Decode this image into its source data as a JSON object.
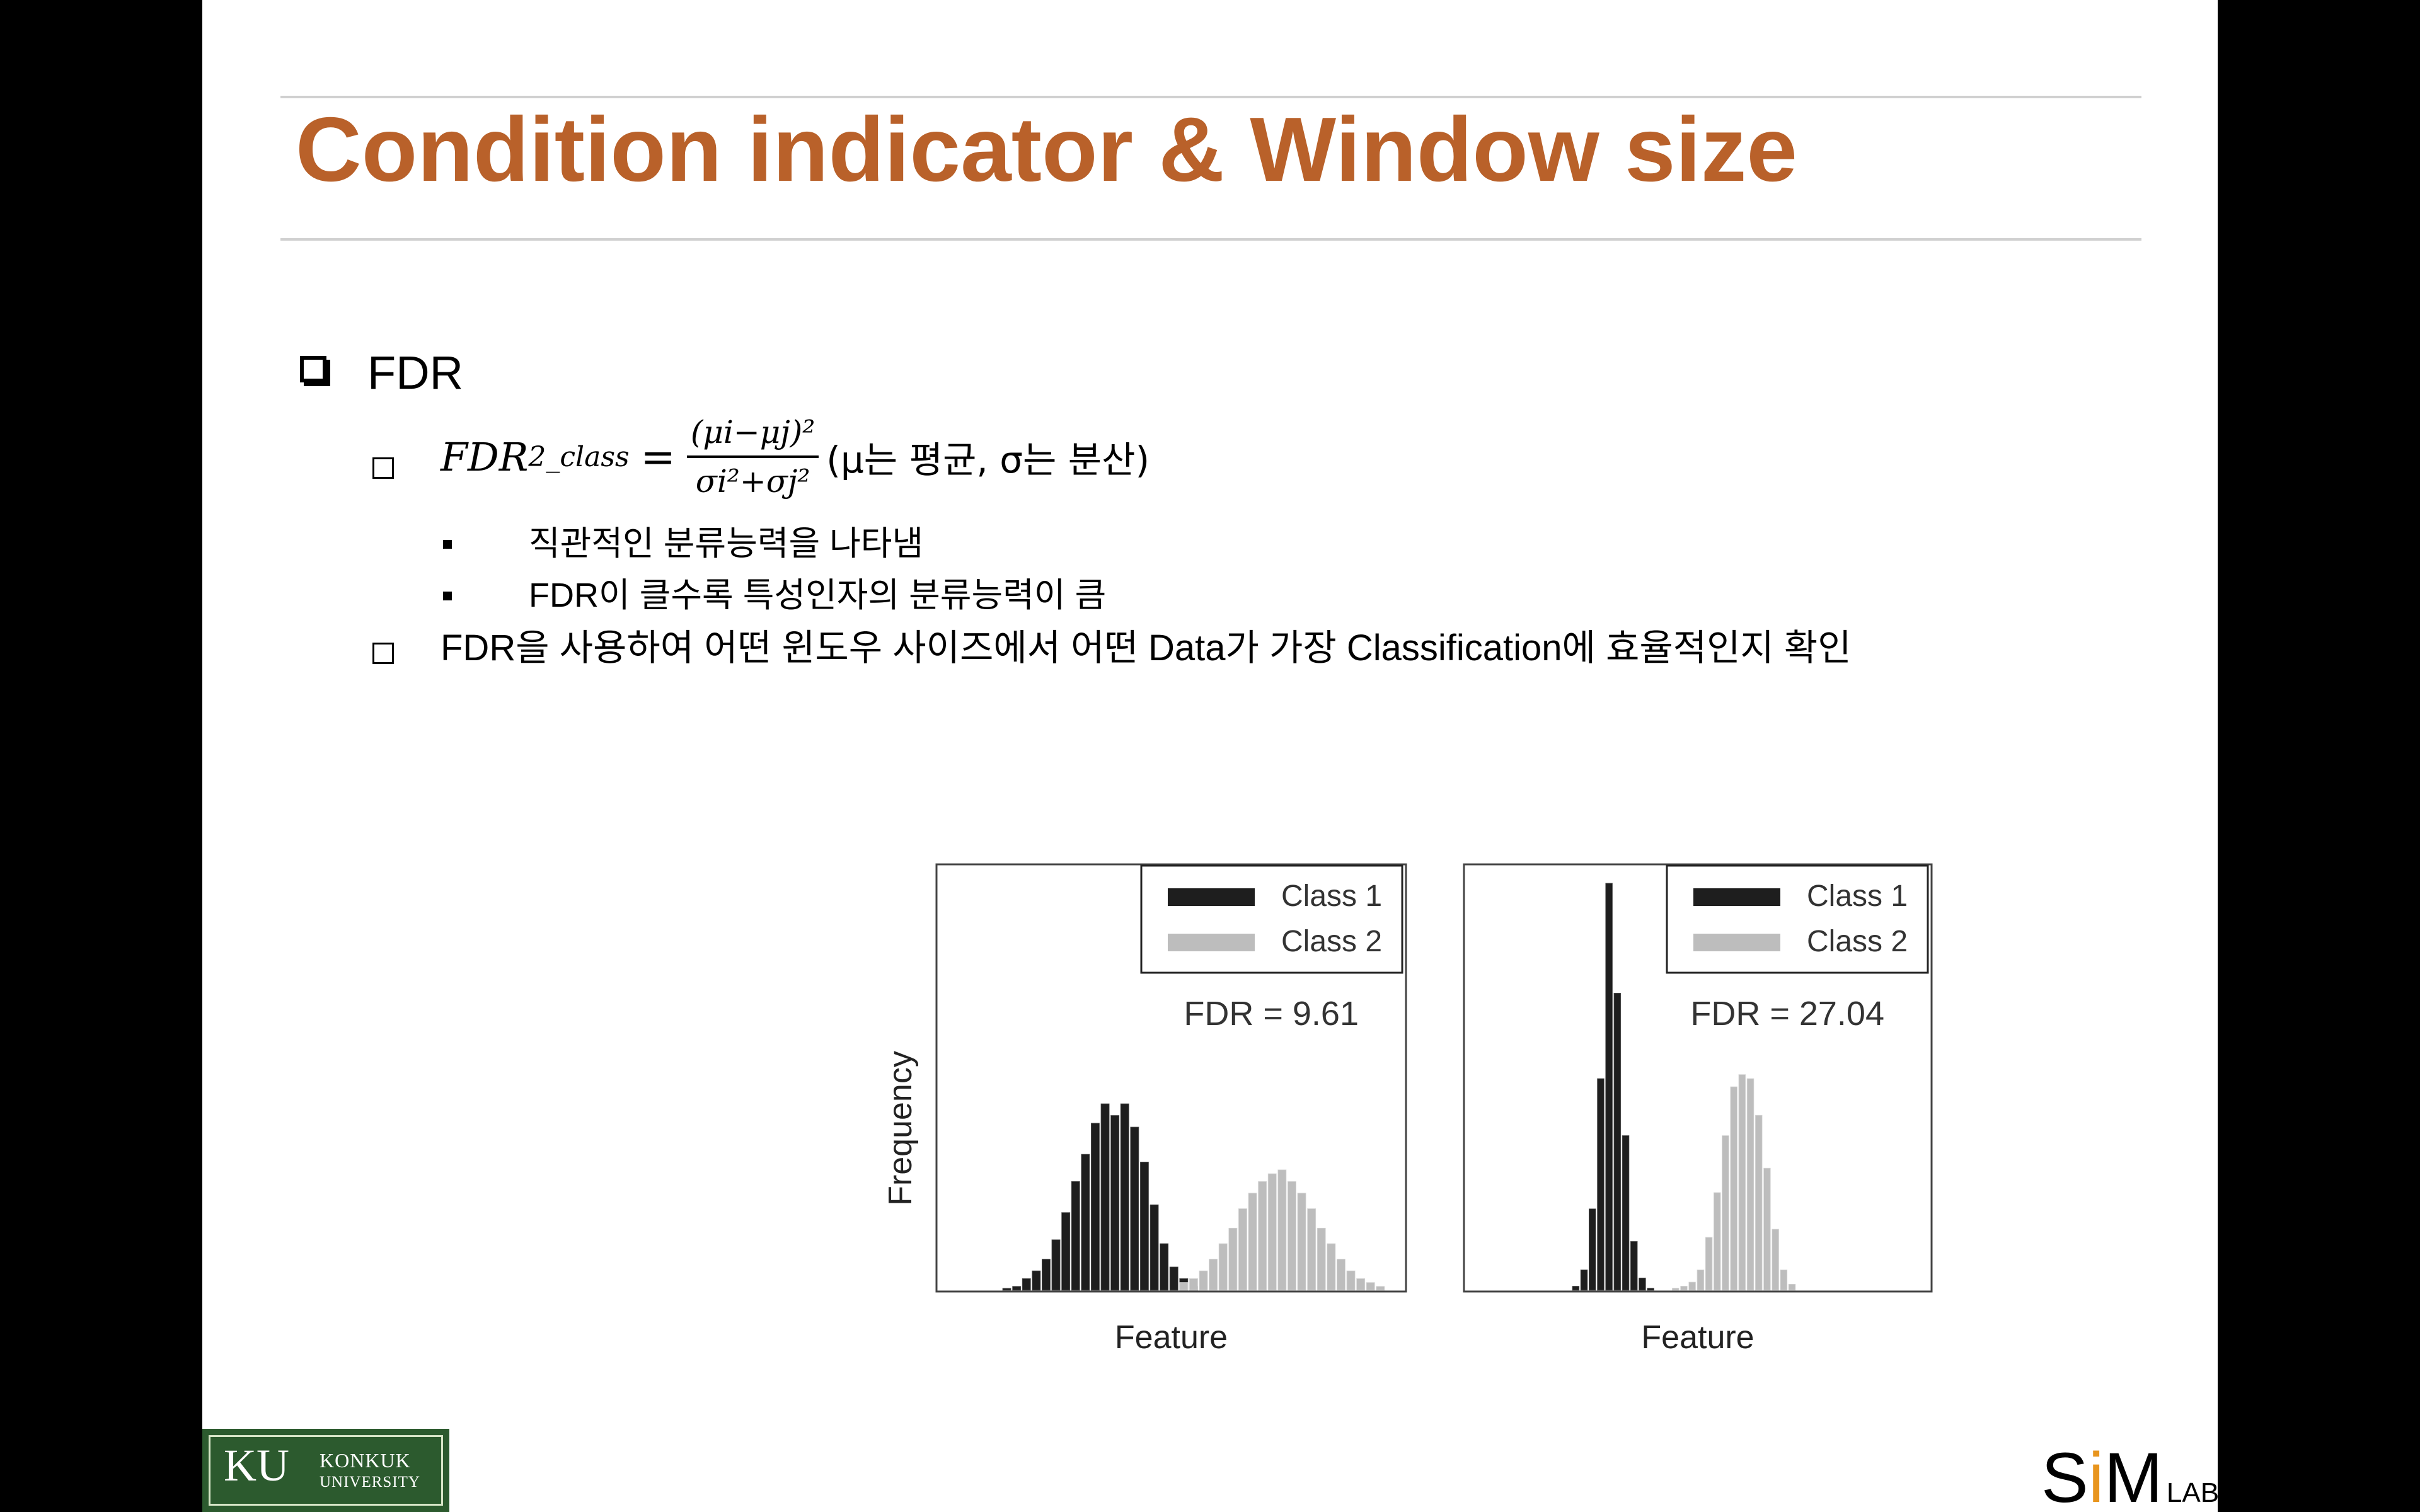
{
  "slide": {
    "title": "Condition indicator & Window size",
    "section": "FDR",
    "formula": {
      "lhs": "FDR",
      "lhs_subscript": "2_class",
      "equals": "=",
      "numerator": "(μi−μj)²",
      "denominator": "σi²+σj²",
      "note": "(μ는 평균, σ는 분산)"
    },
    "bullets": [
      "직관적인 분류능력을 나타냄",
      "FDR이 클수록 특성인자의 분류능력이 큼"
    ],
    "usage_text": "FDR을 사용하여 어떤 윈도우 사이즈에서 어떤 Data가 가장 Classification에 효율적인지 확인"
  },
  "chart_data": [
    {
      "type": "bar",
      "ylabel": "Frequency",
      "xlabel": "Feature",
      "annotation": "FDR = 9.61",
      "legend_position": "top-right",
      "series": [
        {
          "name": "Class 1",
          "color": "#1e1e1e",
          "values": [
            0.5,
            1,
            3,
            5,
            8,
            13,
            20,
            28,
            35,
            43,
            48,
            45,
            48,
            42,
            33,
            22,
            12,
            6,
            3,
            1,
            0,
            0,
            0,
            0,
            0,
            0,
            0,
            0,
            0,
            0,
            0,
            0,
            0,
            0,
            0
          ]
        },
        {
          "name": "Class 2",
          "color": "#bdbdbd",
          "values": [
            0,
            0,
            0,
            0,
            0,
            0,
            0,
            0,
            0,
            0,
            0,
            0,
            0,
            0,
            0,
            0,
            0,
            0,
            2,
            3,
            5,
            8,
            12,
            16,
            21,
            25,
            28,
            30,
            31,
            28,
            25,
            21,
            16,
            12,
            8,
            5,
            3,
            2,
            1
          ]
        }
      ]
    },
    {
      "type": "bar",
      "ylabel": "",
      "xlabel": "Feature",
      "annotation": "FDR = 27.04",
      "legend_position": "top-right",
      "series": [
        {
          "name": "Class 1",
          "color": "#1e1e1e",
          "values": [
            1,
            5,
            20,
            52,
            100,
            73,
            38,
            12,
            3,
            0.5,
            0,
            0,
            0,
            0,
            0,
            0,
            0,
            0,
            0,
            0,
            0,
            0,
            0,
            0,
            0,
            0,
            0,
            0,
            0
          ]
        },
        {
          "name": "Class 2",
          "color": "#bdbdbd",
          "values": [
            0,
            0,
            0,
            0,
            0,
            0,
            0,
            0,
            0,
            0,
            0,
            0,
            0.5,
            1,
            2,
            5,
            13,
            24,
            38,
            50,
            53,
            52,
            43,
            30,
            15,
            5,
            1.5
          ]
        }
      ]
    }
  ],
  "logos": {
    "ku_big": "KU",
    "ku_name": "KONKUK",
    "ku_univ": "UNIVERSITY",
    "sim_s": "S",
    "sim_i": "i",
    "sim_m": "M",
    "sim_lab": "LAB",
    "sim_accent": "#e8951e"
  }
}
